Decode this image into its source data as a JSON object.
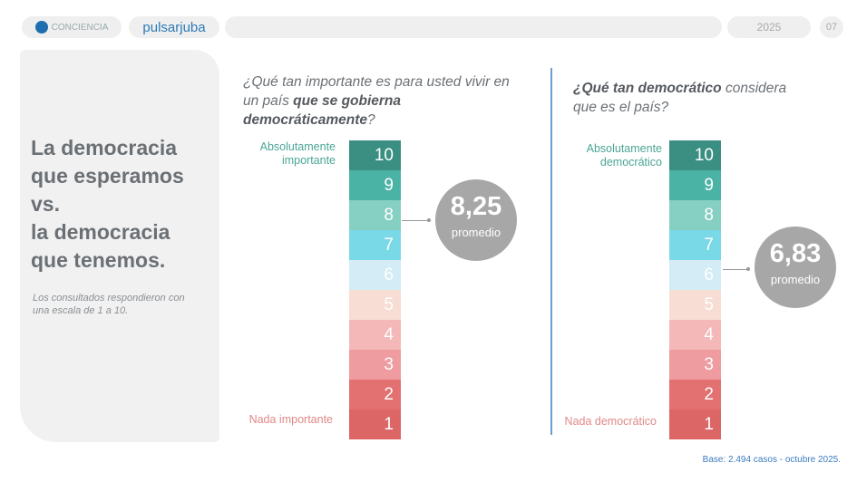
{
  "header": {
    "logo1": "CONCIENCIA",
    "logo2": "pulsarjuba",
    "year": "2025",
    "page": "07"
  },
  "left": {
    "title_lines": [
      "La democracia",
      "que esperamos",
      "vs.",
      "la democracia",
      "que tenemos."
    ],
    "note": "Los consultados respondieron con una escala de 1 a 10."
  },
  "q1": {
    "pre": "¿Qué tan importante es para usted vivir en un país ",
    "bold": "que se gobierna democráticamente",
    "post": "?",
    "top_label": "Absolutamente importante",
    "bottom_label": "Nada importante",
    "average": "8,25",
    "average_label": "promedio"
  },
  "q2": {
    "bold": "¿Qué tan democrático",
    "post": " considera que es el país?",
    "top_label": "Absolutamente democrático",
    "bottom_label": "Nada democrático",
    "average": "6,83",
    "average_label": "promedio"
  },
  "scale": [
    "10",
    "9",
    "8",
    "7",
    "6",
    "5",
    "4",
    "3",
    "2",
    "1"
  ],
  "colors": [
    "#3a8f82",
    "#4bb3a6",
    "#86cfc3",
    "#7ad9e6",
    "#d4ecf5",
    "#f7ddd3",
    "#f4b8b8",
    "#ee9c9f",
    "#e47171",
    "#dc6666"
  ],
  "footer": "Base: 2.494 casos - octubre 2025."
}
